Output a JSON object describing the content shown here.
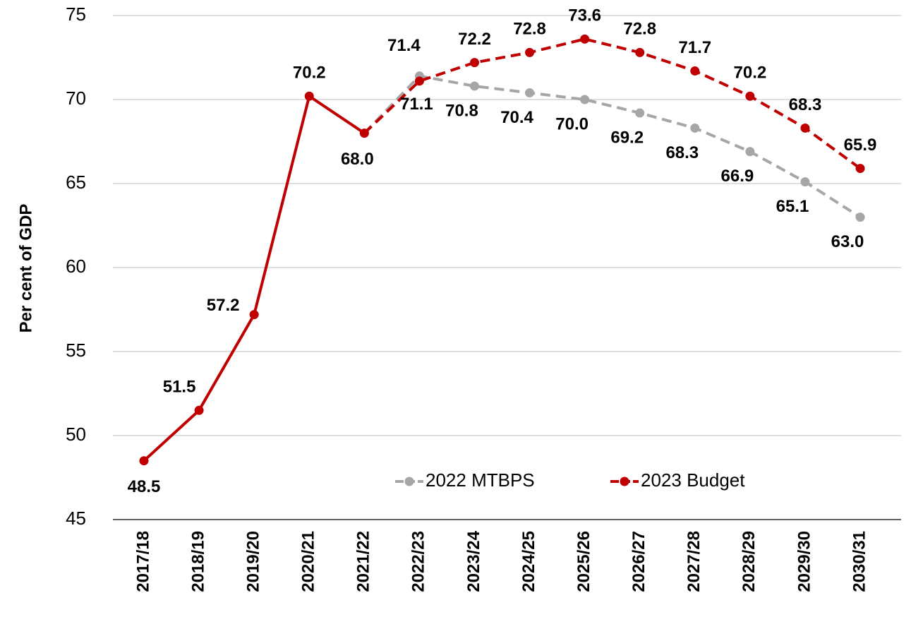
{
  "chart_data": {
    "type": "line",
    "y_label": "Per cent of GDP",
    "categories": [
      "2017/18",
      "2018/19",
      "2019/20",
      "2020/21",
      "2021/22",
      "2022/23",
      "2023/24",
      "2024/25",
      "2025/26",
      "2026/27",
      "2027/28",
      "2028/29",
      "2029/30",
      "2030/31"
    ],
    "series": [
      {
        "name": "2022 MTBPS",
        "color": "#a6a6a6",
        "dashed_from_index": 4,
        "values": [
          null,
          null,
          null,
          null,
          68.0,
          71.4,
          70.8,
          70.4,
          70.0,
          69.2,
          68.3,
          66.9,
          65.1,
          63.0
        ],
        "value_labels": [
          null,
          null,
          null,
          null,
          null,
          "71.4",
          "70.8",
          "70.4",
          "70.0",
          "69.2",
          "68.3",
          "66.9",
          "65.1",
          "63.0"
        ]
      },
      {
        "name": "2023 Budget",
        "color": "#c00000",
        "dashed_from_index": 4,
        "values": [
          48.5,
          51.5,
          57.2,
          70.2,
          68.0,
          71.1,
          72.2,
          72.8,
          73.6,
          72.8,
          71.7,
          70.2,
          68.3,
          65.9
        ],
        "value_labels": [
          "48.5",
          "51.5",
          "57.2",
          "70.2",
          "68.0",
          "71.1",
          "72.2",
          "72.8",
          "73.6",
          "72.8",
          "71.7",
          "70.2",
          "68.3",
          "65.9"
        ]
      }
    ],
    "ylim": [
      45,
      75
    ],
    "yticks": [
      45,
      50,
      55,
      60,
      65,
      70,
      75
    ],
    "grid": true,
    "legend": "lower right"
  }
}
